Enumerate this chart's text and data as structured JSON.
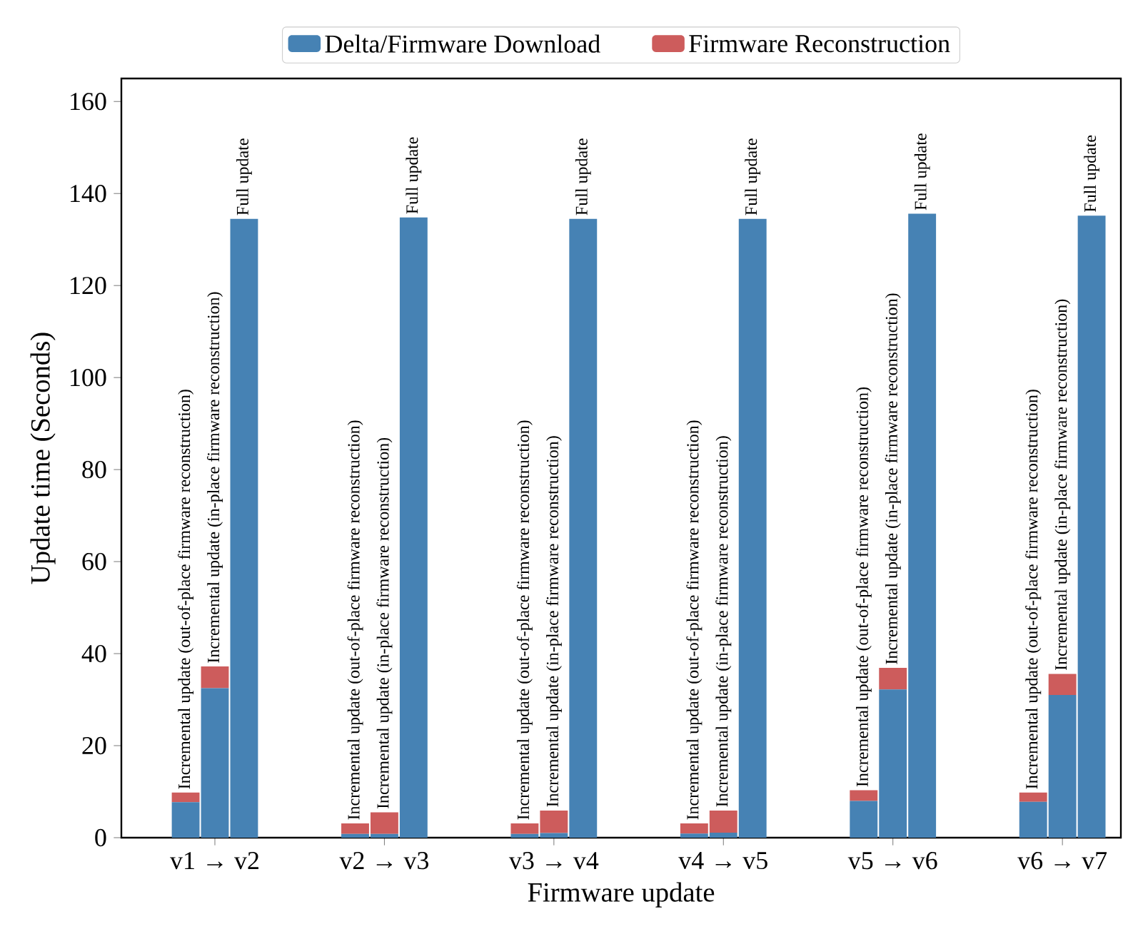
{
  "chart_data": {
    "type": "bar",
    "stacked": true,
    "xlabel": "Firmware update",
    "ylabel": "Update time (Seconds)",
    "categories": [
      null,
      "v1 → v2",
      null,
      null,
      "v2 → v3",
      null,
      null,
      "v3 → v4",
      null,
      null,
      "v4 → v5",
      null,
      null,
      "v5 → v6",
      null,
      null,
      "v6 → v7",
      null
    ],
    "series": [
      {
        "name": "Delta/Firmware Download",
        "color": "#4682b4",
        "values": [
          7.7,
          32.5,
          134.5,
          0.8,
          0.8,
          134.8,
          0.8,
          1.0,
          134.5,
          0.9,
          1.1,
          134.5,
          8.0,
          32.2,
          135.6,
          7.8,
          31.0,
          135.2
        ]
      },
      {
        "name": "Firmware Reconstruction",
        "color": "#cd5c5c",
        "values": [
          2.1,
          4.7,
          null,
          2.3,
          4.7,
          null,
          2.3,
          4.9,
          null,
          2.2,
          4.8,
          null,
          2.3,
          4.7,
          null,
          2.0,
          4.6,
          null
        ]
      }
    ],
    "annotations": [
      "Incremental update (out-of-place firmware reconstruction)",
      "Incremental update (in-place firmware reconstruction)",
      "Full update",
      "Incremental update (out-of-place firmware reconstruction)",
      "Incremental update (in-place firmware reconstruction)",
      "Full update",
      "Incremental update (out-of-place firmware reconstruction)",
      "Incremental update (in-place firmware reconstruction)",
      "Full update",
      "Incremental update (out-of-place firmware reconstruction)",
      "Incremental update (in-place firmware reconstruction)",
      "Full update",
      "Incremental update (out-of-place firmware reconstruction)",
      "Incremental update (in-place firmware reconstruction)",
      "Full update",
      "Incremental update (out-of-place firmware reconstruction)",
      "Incremental update (in-place firmware reconstruction)",
      "Full update"
    ],
    "ylim": [
      0,
      165
    ],
    "yticks": [
      0,
      20,
      40,
      60,
      80,
      100,
      120,
      140,
      160
    ],
    "grid": false,
    "legend": "top"
  }
}
